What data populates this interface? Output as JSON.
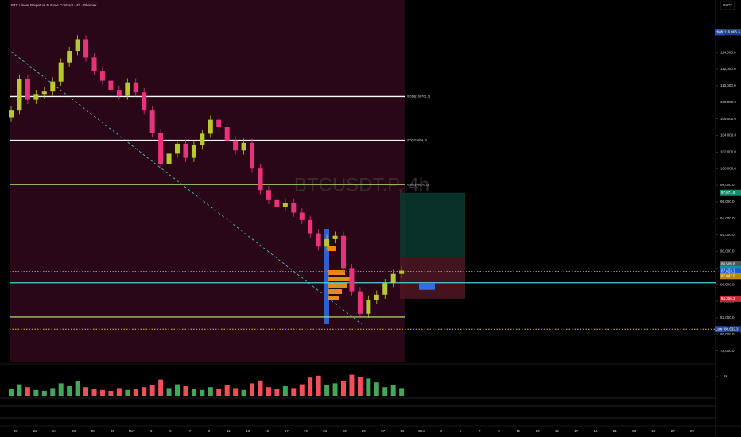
{
  "header": {
    "title": "BTC Linear Perpetual Futures Contract · 4h · Phemex",
    "currency": "USDT"
  },
  "chart_data": {
    "type": "candlestick",
    "watermark": "BTCUSDT.P, 4h",
    "ylim": [
      76630,
      120340
    ],
    "yticks": [
      {
        "value": 78000,
        "label": "78,000.0"
      },
      {
        "value": 80000,
        "label": "80,000.0"
      },
      {
        "value": 82000,
        "label": "82,000.0"
      },
      {
        "value": 84000,
        "label": "84,000.0"
      },
      {
        "value": 86000,
        "label": "86,000.0"
      },
      {
        "value": 88000,
        "label": "88,000.0"
      },
      {
        "value": 90000,
        "label": "90,000.0"
      },
      {
        "value": 92000,
        "label": "92,000.0"
      },
      {
        "value": 94000,
        "label": "94,000.0"
      },
      {
        "value": 96000,
        "label": "96,000.0"
      },
      {
        "value": 98000,
        "label": "98,000.0"
      },
      {
        "value": 100000,
        "label": "100,000.0"
      },
      {
        "value": 102000,
        "label": "102,000.0"
      },
      {
        "value": 104000,
        "label": "104,000.0"
      },
      {
        "value": 106000,
        "label": "106,000.0"
      },
      {
        "value": 108000,
        "label": "108,000.0"
      },
      {
        "value": 110000,
        "label": "110,000.0"
      },
      {
        "value": 112000,
        "label": "112,000.0"
      },
      {
        "value": 114000,
        "label": "114,000.0"
      }
    ],
    "colors": {
      "up": "#b7c92f",
      "down": "#e8337c",
      "volume_up": "#43a65a",
      "volume_down": "#f0505a"
    },
    "open": [
      106200,
      107000,
      110800,
      108300,
      109000,
      109300,
      110500,
      112800,
      114200,
      115600,
      113400,
      111800,
      110600,
      109500,
      108800,
      110400,
      109200,
      107000,
      104300,
      100500,
      101800,
      103000,
      101300,
      102800,
      104200,
      105900,
      105000,
      103400,
      102200,
      103100,
      100000,
      97400,
      96200,
      95400,
      95900,
      94700,
      93800,
      92200,
      90600,
      91500,
      91900,
      88000,
      85200,
      82500,
      84200,
      84800,
      86200,
      87300
    ],
    "high": [
      107500,
      111300,
      111300,
      109500,
      109800,
      111000,
      113300,
      114700,
      116100,
      116100,
      113900,
      112300,
      111100,
      110000,
      110900,
      110900,
      109700,
      107500,
      104800,
      102300,
      103500,
      103500,
      103300,
      104700,
      106400,
      106400,
      105500,
      103900,
      103600,
      103600,
      100500,
      97900,
      96700,
      96400,
      96400,
      95200,
      94300,
      92700,
      92000,
      92400,
      92400,
      88500,
      85700,
      84700,
      85300,
      86700,
      87800,
      88200
    ],
    "low": [
      105700,
      106500,
      107800,
      107800,
      108500,
      108800,
      110000,
      112300,
      113700,
      112900,
      111300,
      110100,
      109000,
      108300,
      108300,
      108700,
      106500,
      103800,
      100000,
      100000,
      101300,
      100800,
      100800,
      102300,
      103700,
      104500,
      102900,
      101700,
      101700,
      99500,
      96900,
      95700,
      94900,
      94900,
      94200,
      93300,
      91700,
      90100,
      90100,
      91000,
      87500,
      84700,
      82000,
      82000,
      83700,
      84300,
      85700,
      86800
    ],
    "close": [
      107000,
      110800,
      108300,
      109000,
      109300,
      110500,
      112800,
      114200,
      115600,
      113400,
      111800,
      110600,
      109500,
      108800,
      110400,
      109200,
      107000,
      104300,
      100500,
      101800,
      103000,
      101300,
      102800,
      104200,
      105900,
      105000,
      103400,
      102200,
      103100,
      100000,
      97400,
      96200,
      95400,
      95900,
      94700,
      93800,
      92200,
      90600,
      91500,
      91900,
      88000,
      85200,
      82500,
      84200,
      84800,
      86200,
      87300,
      87700
    ],
    "volume": [
      700,
      1200,
      900,
      600,
      500,
      800,
      1300,
      1000,
      1500,
      900,
      700,
      600,
      500,
      800,
      600,
      700,
      900,
      1100,
      1700,
      800,
      1200,
      1000,
      700,
      600,
      900,
      700,
      1100,
      800,
      600,
      1300,
      1600,
      900,
      700,
      1000,
      800,
      1200,
      1900,
      2100,
      1100,
      1300,
      1500,
      2200,
      2000,
      1800,
      1400,
      900,
      1100,
      800
    ],
    "volume_ylim": [
      0,
      3000
    ],
    "volume_ticks": [
      {
        "value": 2000,
        "label": "2K"
      }
    ],
    "levels": [
      {
        "value": 108701.1,
        "label": "0.618(108701.1)",
        "color": "#ffffff",
        "style": "solid"
      },
      {
        "value": 103414.3,
        "label": "0.5(103414.3)",
        "color": "#ffffff",
        "style": "solid"
      },
      {
        "value": 98076.1,
        "label": "0.382(98076.1)",
        "color": "#9ccc65",
        "style": "solid"
      },
      {
        "value": 82100,
        "color": "#9ccc65",
        "style": "solid"
      },
      {
        "value": 87600,
        "color": "#8a8a8a",
        "style": "dotted"
      },
      {
        "value": 86240,
        "color": "#4dd0e1",
        "style": "solid"
      },
      {
        "value": 80632.3,
        "color": "#e6c229",
        "style": "dotted"
      }
    ],
    "position": {
      "target": 97071.6,
      "entry": 89313,
      "stop": 84306.3
    },
    "badges": [
      {
        "value": 116466.3,
        "label": "116,466.3",
        "tag": "High",
        "color": "#1e3a8a"
      },
      {
        "value": 97071.6,
        "label": "97,071.6",
        "color": "#1b8a6b"
      },
      {
        "value": 88509.8,
        "label": "88,509.8",
        "color": "#555555"
      },
      {
        "value": 87877.5,
        "label": "87,877.5",
        "color": "#0097a7"
      },
      {
        "value": 87623.1,
        "label": "87,623.1",
        "color": "#1e5bd6"
      },
      {
        "value": 87047.5,
        "label": "87,047.5",
        "color": "#b88a00"
      },
      {
        "value": 84306.3,
        "label": "84,306.3",
        "color": "#c62a3a"
      },
      {
        "value": 80632.3,
        "label": "80,632.3",
        "tag": "Low",
        "color": "#1e3a8a"
      }
    ]
  },
  "time_axis": {
    "labels": [
      "20",
      "22",
      "24",
      "26",
      "28",
      "30",
      "Nov",
      "3",
      "5",
      "7",
      "9",
      "11",
      "13",
      "15",
      "17",
      "19",
      "21",
      "23",
      "25",
      "27",
      "29",
      "Dec",
      "3",
      "5",
      "7",
      "9",
      "11",
      "13",
      "15",
      "17",
      "19",
      "21",
      "23",
      "25",
      "27",
      "29"
    ]
  }
}
